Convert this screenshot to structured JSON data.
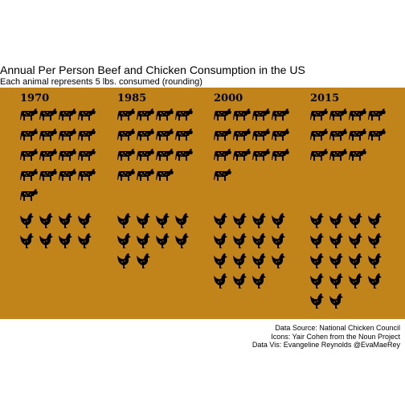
{
  "chart_data": {
    "type": "pictogram",
    "title": "Annual Per Person Beef and Chicken Consumption in the US",
    "subtitle": "Each animal represents 5 lbs. consumed (rounding)",
    "unit_lbs_per_icon": 5,
    "years": [
      "1970",
      "1985",
      "2000",
      "2015"
    ],
    "series": [
      {
        "name": "beef",
        "icon": "cow-icon",
        "values": [
          17,
          15,
          13,
          11
        ]
      },
      {
        "name": "chicken",
        "icon": "chicken-icon",
        "values": [
          8,
          10,
          15,
          18
        ]
      }
    ],
    "background_color": "#c1841b",
    "icon_color": "#000000",
    "captions": [
      "Data Source: National Chicken Council",
      "Icons:  Yair Cohen from the Noun Project",
      "Data Vis: Evangeline Reynolds @EvaMaeRey"
    ]
  }
}
